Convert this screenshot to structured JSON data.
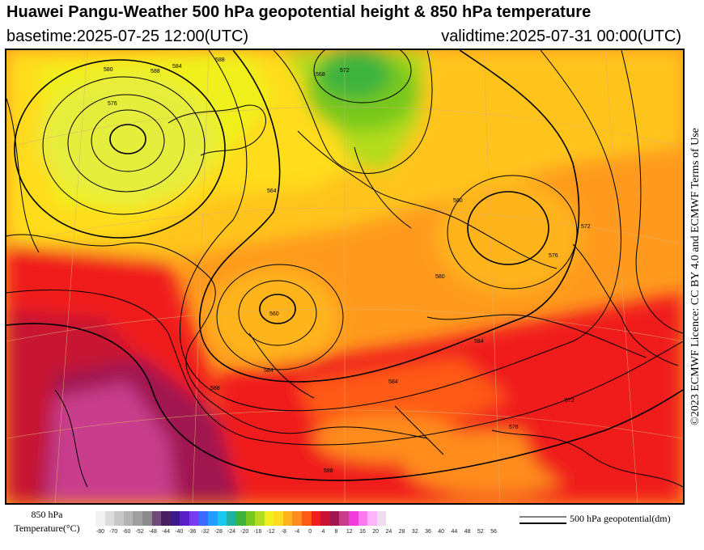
{
  "header": {
    "title": "Huawei Pangu-Weather 500 hPa geopotential height & 850 hPa temperature",
    "basetime": "basetime:2025-07-25 12:00(UTC)",
    "validtime": "validtime:2025-07-31 00:00(UTC)"
  },
  "licence": "©2023 ECMWF Licence: CC BY 4.0 and ECMWF Terms of Use",
  "colorbar": {
    "label_line1": "850 hPa",
    "label_line2": "Temperature(°C)",
    "ticks": [
      "-80",
      "-70",
      "-60",
      "-52",
      "-48",
      "-44",
      "-40",
      "-36",
      "-32",
      "-28",
      "-24",
      "-20",
      "-16",
      "-12",
      "-8",
      "-4",
      "0",
      "4",
      "8",
      "12",
      "16",
      "20",
      "24",
      "28",
      "32",
      "36",
      "40",
      "44",
      "48",
      "52",
      "56"
    ],
    "colors": [
      "#f2f2f2",
      "#dcdcdc",
      "#c8c8c8",
      "#b4b4b4",
      "#a0a0a0",
      "#8c8c8c",
      "#6e4b78",
      "#4b2060",
      "#3c1a8c",
      "#5a1fc8",
      "#7a3cf0",
      "#3c6cff",
      "#1fa0ff",
      "#18c8f0",
      "#1cb4a0",
      "#3cb43c",
      "#78c81e",
      "#b4dc1e",
      "#f0f01e",
      "#ffdc1e",
      "#ffb41e",
      "#ff8c1e",
      "#ff5a14",
      "#f01e1e",
      "#c81432",
      "#a01450",
      "#c83c8c",
      "#f03cdc",
      "#ff78f0",
      "#ffb4f8",
      "#f0dcf0"
    ]
  },
  "map": {
    "height_labels": [
      "580",
      "584",
      "588",
      "588",
      "576",
      "572",
      "560",
      "560",
      "564",
      "568",
      "572",
      "576",
      "580",
      "584",
      "588",
      "588",
      "584",
      "572",
      "576",
      "584"
    ]
  },
  "legend": {
    "label": "500 hPa geopotential(dm)"
  }
}
